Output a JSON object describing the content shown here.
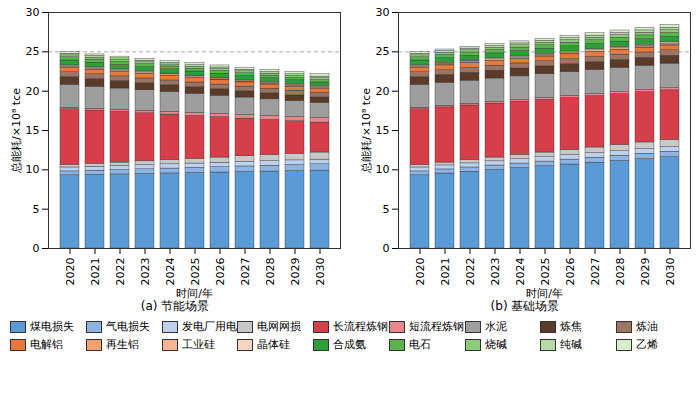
{
  "chart_data": [
    {
      "type": "bar",
      "stacked": true,
      "subtitle": "(a) 节能场景",
      "x_label": "时间/年",
      "y_label": "总能耗/×10⁸ tce",
      "categories": [
        "2020",
        "2021",
        "2022",
        "2023",
        "2024",
        "2025",
        "2026",
        "2027",
        "2028",
        "2029",
        "2030"
      ],
      "ylim": [
        0,
        30
      ],
      "yticks": [
        0,
        5,
        10,
        15,
        20,
        25,
        30
      ],
      "hline": 25,
      "legend": "bottom",
      "series": [
        {
          "name": "煤电损失",
          "color": "#5b9bd5",
          "values": [
            9.3,
            9.36,
            9.42,
            9.48,
            9.54,
            9.6,
            9.66,
            9.72,
            9.78,
            9.84,
            9.9
          ]
        },
        {
          "name": "气电损失",
          "color": "#8db4e2",
          "values": [
            0.5,
            0.53,
            0.56,
            0.59,
            0.62,
            0.65,
            0.68,
            0.71,
            0.74,
            0.77,
            0.8
          ]
        },
        {
          "name": "发电厂用电",
          "color": "#bdd1ec",
          "values": [
            0.5,
            0.51,
            0.52,
            0.53,
            0.54,
            0.55,
            0.56,
            0.57,
            0.58,
            0.59,
            0.6
          ]
        },
        {
          "name": "电网网损",
          "color": "#c8c8c8",
          "values": [
            0.3,
            0.36,
            0.42,
            0.48,
            0.54,
            0.6,
            0.66,
            0.72,
            0.78,
            0.84,
            0.9
          ]
        },
        {
          "name": "长流程炼钢",
          "color": "#d63f4a",
          "values": [
            7.1,
            6.77,
            6.44,
            6.11,
            5.78,
            5.45,
            5.12,
            4.79,
            4.46,
            4.13,
            3.8
          ]
        },
        {
          "name": "短流程炼钢",
          "color": "#e8868c",
          "values": [
            0.2,
            0.24,
            0.28,
            0.32,
            0.36,
            0.4,
            0.44,
            0.48,
            0.52,
            0.56,
            0.6
          ]
        },
        {
          "name": "水泥",
          "color": "#9e9e9e",
          "values": [
            2.9,
            2.8,
            2.7,
            2.6,
            2.5,
            2.4,
            2.3,
            2.2,
            2.1,
            2.0,
            1.9
          ]
        },
        {
          "name": "炼焦",
          "color": "#5a3a28",
          "values": [
            1.0,
            0.97,
            0.94,
            0.91,
            0.88,
            0.85,
            0.82,
            0.79,
            0.76,
            0.73,
            0.7
          ]
        },
        {
          "name": "炼油",
          "color": "#9b7463",
          "values": [
            0.6,
            0.6,
            0.6,
            0.6,
            0.6,
            0.6,
            0.6,
            0.6,
            0.6,
            0.6,
            0.6
          ]
        },
        {
          "name": "电解铝",
          "color": "#e8793c",
          "values": [
            0.6,
            0.59,
            0.58,
            0.57,
            0.56,
            0.55,
            0.54,
            0.53,
            0.52,
            0.51,
            0.5
          ]
        },
        {
          "name": "再生铝",
          "color": "#f1a070",
          "values": [
            0.05,
            0.055,
            0.06,
            0.065,
            0.07,
            0.075,
            0.08,
            0.085,
            0.09,
            0.095,
            0.1
          ]
        },
        {
          "name": "工业硅",
          "color": "#f4b692",
          "values": [
            0.15,
            0.15,
            0.15,
            0.15,
            0.15,
            0.15,
            0.15,
            0.15,
            0.15,
            0.15,
            0.15
          ]
        },
        {
          "name": "晶体硅",
          "color": "#f8d4c0",
          "values": [
            0.1,
            0.1,
            0.1,
            0.1,
            0.1,
            0.1,
            0.1,
            0.1,
            0.1,
            0.1,
            0.1
          ]
        },
        {
          "name": "合成氨",
          "color": "#2e9e3a",
          "values": [
            0.6,
            0.585,
            0.57,
            0.555,
            0.54,
            0.525,
            0.51,
            0.495,
            0.48,
            0.465,
            0.45
          ]
        },
        {
          "name": "电石",
          "color": "#5cb54c",
          "values": [
            0.4,
            0.39,
            0.38,
            0.37,
            0.36,
            0.35,
            0.34,
            0.33,
            0.32,
            0.31,
            0.3
          ]
        },
        {
          "name": "烧碱",
          "color": "#8dca7c",
          "values": [
            0.25,
            0.25,
            0.25,
            0.25,
            0.25,
            0.25,
            0.25,
            0.25,
            0.25,
            0.25,
            0.25
          ]
        },
        {
          "name": "纯碱",
          "color": "#b6dca6",
          "values": [
            0.2,
            0.2,
            0.2,
            0.2,
            0.2,
            0.2,
            0.2,
            0.2,
            0.2,
            0.2,
            0.2
          ]
        },
        {
          "name": "乙烯",
          "color": "#d8edca",
          "values": [
            0.2,
            0.21,
            0.22,
            0.23,
            0.24,
            0.25,
            0.26,
            0.27,
            0.28,
            0.29,
            0.3
          ]
        }
      ]
    },
    {
      "type": "bar",
      "stacked": true,
      "subtitle": "(b) 基础场景",
      "x_label": "时间/年",
      "y_label": "总能耗/×10⁸ tce",
      "categories": [
        "2020",
        "2021",
        "2022",
        "2023",
        "2024",
        "2025",
        "2026",
        "2027",
        "2028",
        "2029",
        "2030"
      ],
      "ylim": [
        0,
        30
      ],
      "yticks": [
        0,
        5,
        10,
        15,
        20,
        25,
        30
      ],
      "hline": 25,
      "legend": "bottom",
      "series": [
        {
          "name": "煤电损失",
          "color": "#5b9bd5",
          "values": [
            9.3,
            9.53,
            9.76,
            9.99,
            10.22,
            10.45,
            10.68,
            10.91,
            11.14,
            11.37,
            11.6
          ]
        },
        {
          "name": "气电损失",
          "color": "#8db4e2",
          "values": [
            0.5,
            0.52,
            0.54,
            0.56,
            0.58,
            0.6,
            0.62,
            0.64,
            0.66,
            0.68,
            0.7
          ]
        },
        {
          "name": "发电厂用电",
          "color": "#bdd1ec",
          "values": [
            0.5,
            0.51,
            0.52,
            0.53,
            0.54,
            0.55,
            0.56,
            0.57,
            0.58,
            0.59,
            0.6
          ]
        },
        {
          "name": "电网网损",
          "color": "#c8c8c8",
          "values": [
            0.3,
            0.36,
            0.42,
            0.48,
            0.54,
            0.6,
            0.66,
            0.72,
            0.78,
            0.84,
            0.9
          ]
        },
        {
          "name": "长流程炼钢",
          "color": "#d63f4a",
          "values": [
            7.1,
            7.02,
            6.94,
            6.86,
            6.78,
            6.7,
            6.62,
            6.54,
            6.46,
            6.38,
            6.3
          ]
        },
        {
          "name": "短流程炼钢",
          "color": "#e8868c",
          "values": [
            0.2,
            0.21,
            0.22,
            0.23,
            0.24,
            0.25,
            0.26,
            0.27,
            0.28,
            0.29,
            0.3
          ]
        },
        {
          "name": "水泥",
          "color": "#9e9e9e",
          "values": [
            2.9,
            2.92,
            2.94,
            2.96,
            2.98,
            3.0,
            3.02,
            3.04,
            3.06,
            3.08,
            3.1
          ]
        },
        {
          "name": "炼焦",
          "color": "#5a3a28",
          "values": [
            1.0,
            1.0,
            1.0,
            1.0,
            1.0,
            1.0,
            1.0,
            1.0,
            1.0,
            1.0,
            1.0
          ]
        },
        {
          "name": "炼油",
          "color": "#9b7463",
          "values": [
            0.6,
            0.61,
            0.62,
            0.63,
            0.64,
            0.65,
            0.66,
            0.67,
            0.68,
            0.69,
            0.7
          ]
        },
        {
          "name": "电解铝",
          "color": "#e8793c",
          "values": [
            0.6,
            0.6,
            0.6,
            0.6,
            0.6,
            0.6,
            0.6,
            0.6,
            0.6,
            0.6,
            0.6
          ]
        },
        {
          "name": "再生铝",
          "color": "#f1a070",
          "values": [
            0.05,
            0.05,
            0.05,
            0.05,
            0.05,
            0.05,
            0.05,
            0.05,
            0.05,
            0.05,
            0.05
          ]
        },
        {
          "name": "工业硅",
          "color": "#f4b692",
          "values": [
            0.15,
            0.155,
            0.16,
            0.165,
            0.17,
            0.175,
            0.18,
            0.185,
            0.19,
            0.195,
            0.2
          ]
        },
        {
          "name": "晶体硅",
          "color": "#f8d4c0",
          "values": [
            0.1,
            0.105,
            0.11,
            0.115,
            0.12,
            0.125,
            0.13,
            0.135,
            0.14,
            0.145,
            0.15
          ]
        },
        {
          "name": "合成氨",
          "color": "#2e9e3a",
          "values": [
            0.6,
            0.61,
            0.62,
            0.63,
            0.64,
            0.65,
            0.66,
            0.67,
            0.68,
            0.69,
            0.7
          ]
        },
        {
          "name": "电石",
          "color": "#5cb54c",
          "values": [
            0.4,
            0.41,
            0.42,
            0.43,
            0.44,
            0.45,
            0.46,
            0.47,
            0.48,
            0.49,
            0.5
          ]
        },
        {
          "name": "烧碱",
          "color": "#8dca7c",
          "values": [
            0.25,
            0.26,
            0.27,
            0.28,
            0.29,
            0.3,
            0.31,
            0.32,
            0.33,
            0.34,
            0.35
          ]
        },
        {
          "name": "纯碱",
          "color": "#b6dca6",
          "values": [
            0.2,
            0.21,
            0.22,
            0.23,
            0.24,
            0.25,
            0.26,
            0.27,
            0.28,
            0.29,
            0.3
          ]
        },
        {
          "name": "乙烯",
          "color": "#d8edca",
          "values": [
            0.2,
            0.215,
            0.23,
            0.245,
            0.26,
            0.275,
            0.29,
            0.305,
            0.32,
            0.335,
            0.35
          ]
        }
      ]
    }
  ]
}
